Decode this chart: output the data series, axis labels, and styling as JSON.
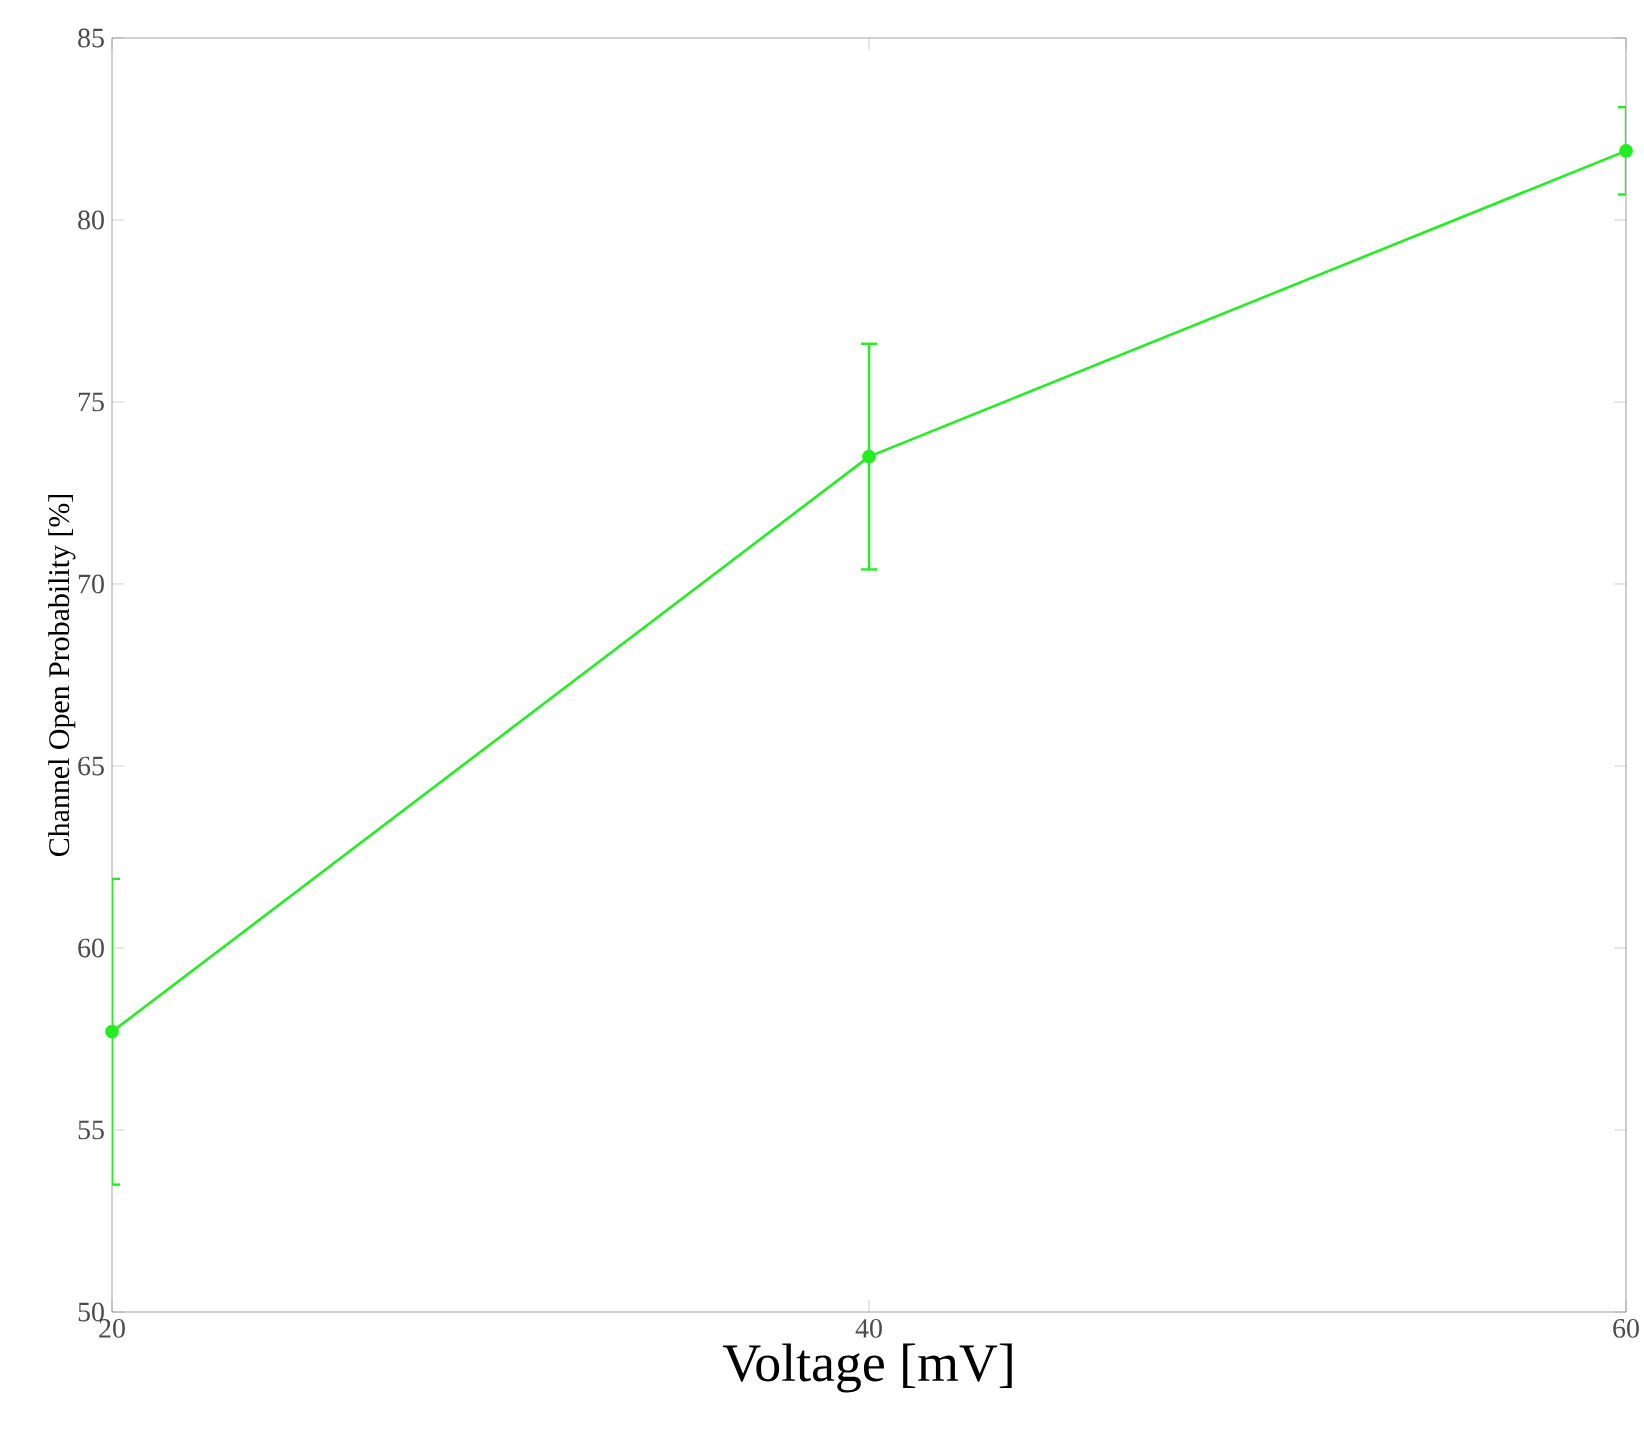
{
  "chart_data": {
    "type": "line",
    "xlabel": "Voltage [mV]",
    "ylabel": "Channel Open Probability [%]",
    "x": [
      20,
      40,
      60
    ],
    "series": [
      {
        "color": "#22ee22",
        "values": [
          57.7,
          73.5,
          81.9
        ],
        "errors": [
          4.2,
          3.1,
          1.2
        ]
      }
    ],
    "xlim": [
      20,
      60
    ],
    "xticks": [
      20,
      40,
      60
    ],
    "ylim": [
      50,
      85
    ],
    "yticks": [
      50,
      55,
      60,
      65,
      70,
      75,
      80,
      85
    ],
    "grid": false,
    "marker": "circle",
    "line_style": "solid"
  }
}
